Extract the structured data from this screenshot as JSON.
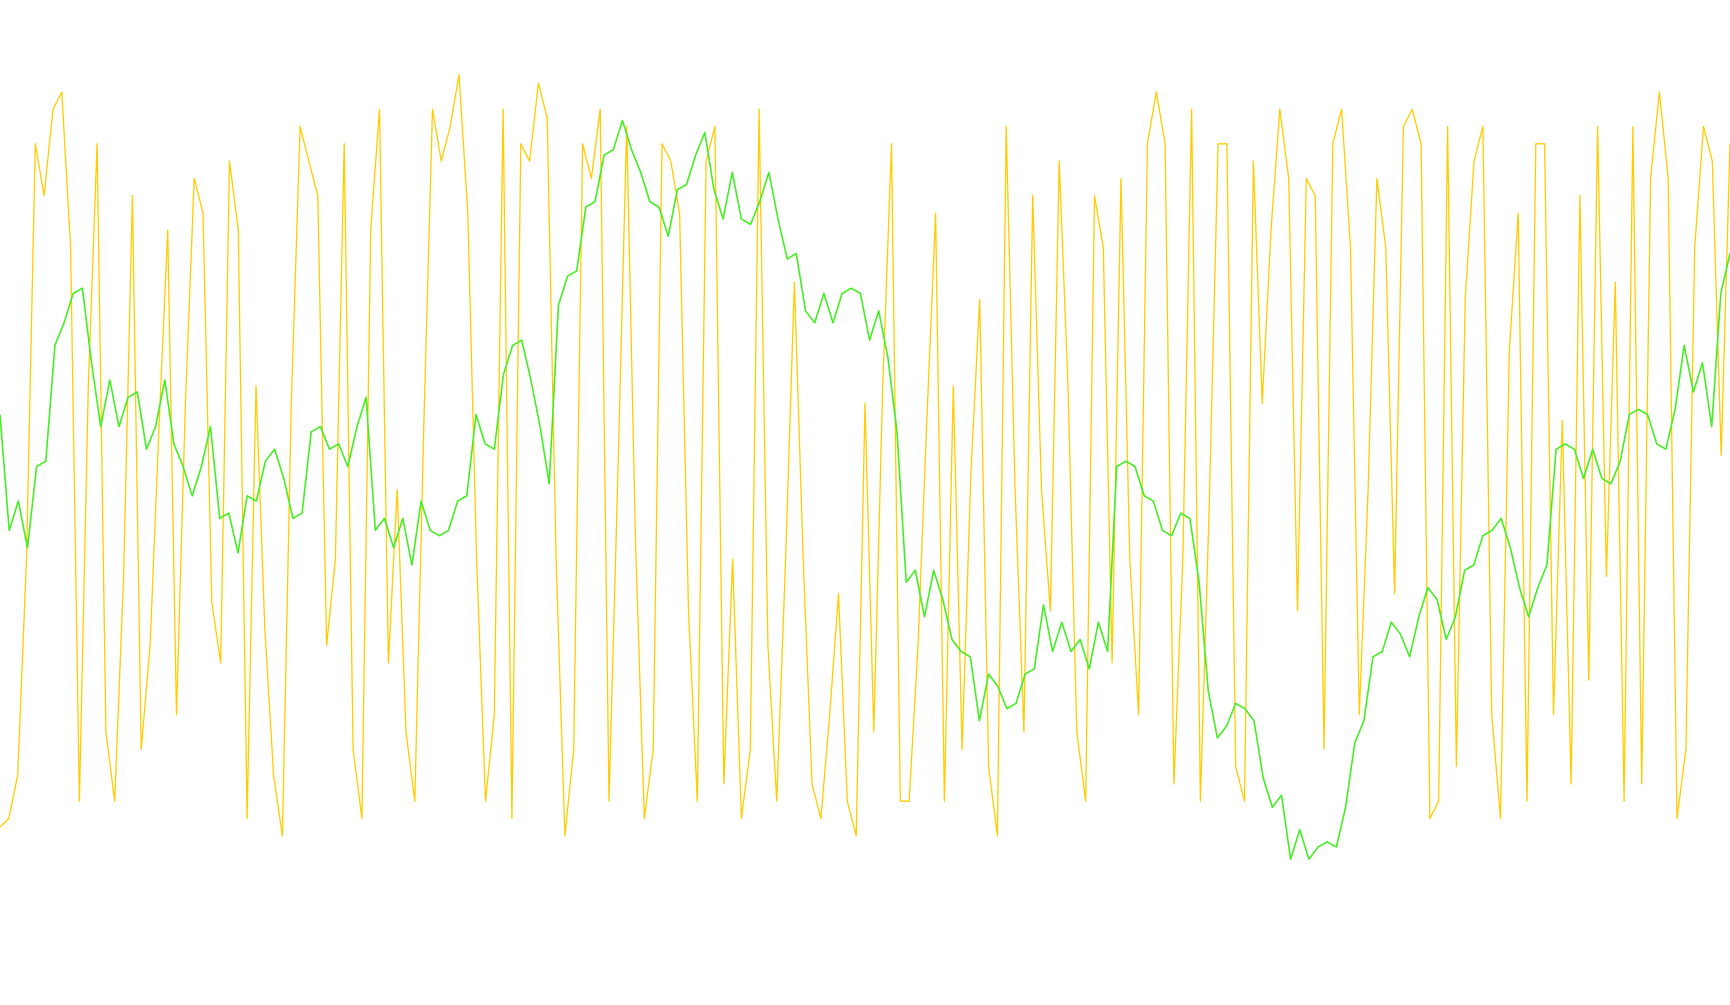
{
  "chart_data": {
    "type": "line",
    "grid": false,
    "legend": "none",
    "title": "",
    "xlabel": "",
    "ylabel": "",
    "xlim": [
      0,
      100
    ],
    "ylim": [
      0,
      100
    ],
    "series": [
      {
        "color": "#ffcc00",
        "values": [
          9,
          10,
          15,
          40,
          88,
          82,
          92,
          94,
          76,
          12,
          60,
          88,
          20,
          12,
          38,
          82,
          18,
          30,
          55,
          78,
          22,
          58,
          84,
          80,
          35,
          28,
          86,
          78,
          10,
          60,
          32,
          15,
          8,
          58,
          90,
          86,
          82,
          30,
          40,
          88,
          18,
          10,
          78,
          92,
          28,
          48,
          20,
          12,
          55,
          92,
          86,
          90,
          96,
          80,
          40,
          12,
          22,
          92,
          10,
          88,
          86,
          95,
          91,
          40,
          8,
          18,
          88,
          84,
          92,
          12,
          50,
          90,
          42,
          10,
          18,
          88,
          86,
          80,
          34,
          12,
          86,
          90,
          14,
          40,
          10,
          18,
          92,
          30,
          12,
          40,
          72,
          40,
          14,
          10,
          22,
          36,
          12,
          8,
          58,
          20,
          60,
          88,
          12,
          12,
          30,
          56,
          80,
          12,
          60,
          18,
          50,
          70,
          16,
          8,
          90,
          48,
          20,
          82,
          48,
          34,
          86,
          60,
          20,
          12,
          82,
          76,
          28,
          84,
          40,
          22,
          88,
          94,
          88,
          14,
          40,
          92,
          12,
          46,
          88,
          88,
          16,
          12,
          86,
          58,
          78,
          92,
          84,
          34,
          84,
          82,
          18,
          88,
          92,
          76,
          22,
          48,
          84,
          76,
          36,
          90,
          92,
          88,
          10,
          12,
          90,
          16,
          70,
          86,
          90,
          22,
          10,
          64,
          80,
          12,
          88,
          88,
          22,
          56,
          14,
          82,
          26,
          90,
          38,
          72,
          12,
          90,
          14,
          84,
          94,
          84,
          10,
          18,
          76,
          90,
          86,
          52,
          88
        ]
      },
      {
        "color": "#44ee22",
        "values": [
          56,
          44,
          46,
          42,
          50,
          52,
          64,
          68,
          70,
          72,
          62,
          56,
          60,
          56,
          58,
          60,
          52,
          56,
          60,
          54,
          50,
          48,
          50,
          56,
          44,
          46,
          40,
          48,
          46,
          52,
          52,
          50,
          44,
          46,
          54,
          56,
          52,
          54,
          50,
          56,
          58,
          44,
          44,
          42,
          44,
          40,
          46,
          44,
          42,
          44,
          46,
          48,
          56,
          54,
          52,
          62,
          64,
          66,
          60,
          56,
          48,
          70,
          72,
          74,
          80,
          82,
          86,
          88,
          90,
          88,
          84,
          82,
          80,
          78,
          82,
          84,
          86,
          90,
          82,
          80,
          84,
          80,
          78,
          82,
          84,
          80,
          74,
          76,
          68,
          68,
          70,
          68,
          70,
          72,
          70,
          66,
          68,
          64,
          54,
          38,
          38,
          34,
          38,
          36,
          30,
          30,
          28,
          22,
          26,
          26,
          22,
          24,
          26,
          28,
          34,
          30,
          32,
          30,
          30,
          28,
          32,
          30,
          50,
          52,
          50,
          48,
          46,
          44,
          42,
          46,
          44,
          38,
          24,
          20,
          20,
          24,
          22,
          22,
          14,
          12,
          12,
          6,
          8,
          6,
          6,
          8,
          6,
          12,
          18,
          22,
          28,
          30,
          32,
          32,
          28,
          34,
          36,
          36,
          30,
          34,
          38,
          40,
          42,
          44,
          44,
          42,
          36,
          34,
          36,
          40,
          52,
          54,
          52,
          50,
          52,
          50,
          48,
          52,
          56,
          58,
          56,
          54,
          52,
          58,
          64,
          60,
          62,
          56,
          70,
          76
        ]
      }
    ]
  }
}
